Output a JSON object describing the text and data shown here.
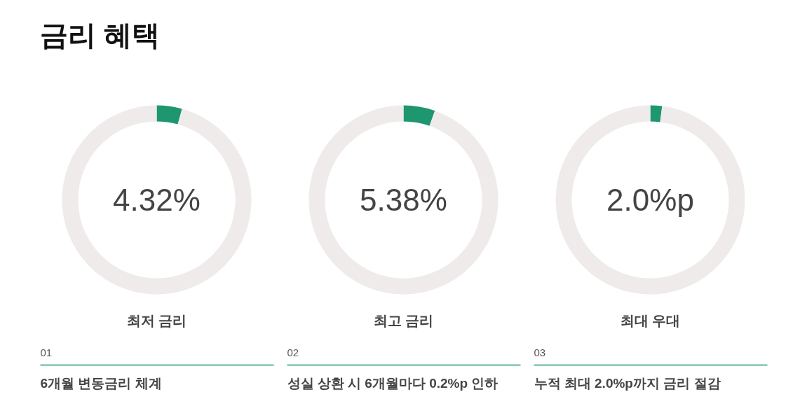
{
  "chart_data": [
    {
      "type": "donut",
      "title": "금리 혜택",
      "categories": [
        null,
        null
      ],
      "values": [
        4.32,
        95.68
      ],
      "colors": [
        "#1e9670",
        "#efebea"
      ],
      "annotations": [
        "4.32%",
        "최저 금리",
        "01",
        "6개월 변동금리 체계"
      ]
    },
    {
      "type": "donut",
      "categories": [
        null,
        null
      ],
      "values": [
        5.38,
        94.62
      ],
      "colors": [
        "#1e9670",
        "#efebea"
      ],
      "annotations": [
        "5.38%",
        "최고 금리",
        "02",
        "성실 상환 시 6개월마다 0.2%p 인하"
      ]
    },
    {
      "type": "donut",
      "categories": [
        null,
        null
      ],
      "values": [
        2.0,
        98.0
      ],
      "colors": [
        "#1e9670",
        "#efebea"
      ],
      "annotations": [
        "2.0%p",
        "최대 우대",
        "03",
        "누적 최대 2.0%p까지 금리 절감"
      ]
    }
  ]
}
